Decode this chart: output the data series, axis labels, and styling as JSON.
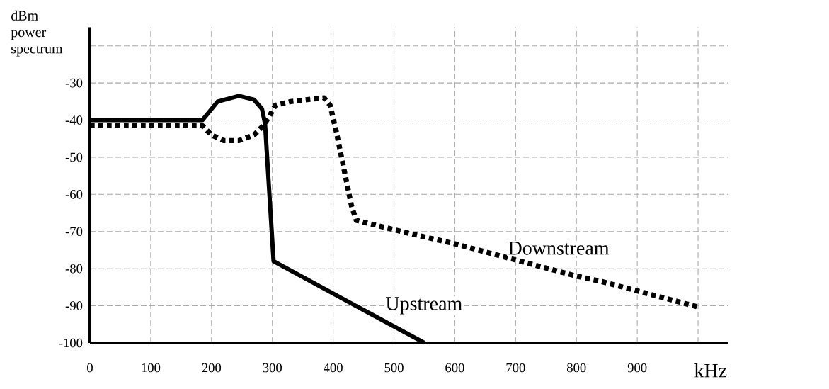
{
  "chart_data": {
    "type": "line",
    "xlabel": "kHz",
    "ylabel": "dBm power spectrum",
    "xlim": [
      0,
      1050
    ],
    "ylim": [
      -100,
      -15
    ],
    "xticks": [
      0,
      100,
      200,
      300,
      400,
      500,
      600,
      700,
      800,
      900,
      {
        "value": 1000,
        "label": null
      }
    ],
    "yticks": [
      -100,
      -90,
      -80,
      -70,
      -60,
      -50,
      -40,
      -30,
      {
        "value": -20,
        "label": null
      }
    ],
    "grid": true,
    "legend": false,
    "marker": "none",
    "series": [
      {
        "name": "Upstream",
        "color": "#000000",
        "line_style": "solid",
        "x": [
          0,
          185,
          195,
          210,
          245,
          270,
          283,
          288,
          302,
          550
        ],
        "values": [
          -40,
          -40,
          -38,
          -35,
          -33.5,
          -34.5,
          -37,
          -41,
          -78,
          -100
        ]
      },
      {
        "name": "Downstream",
        "color": "#000000",
        "line_style": "dotted",
        "x": [
          0,
          185,
          200,
          220,
          245,
          270,
          285,
          295,
          305,
          330,
          385,
          395,
          405,
          420,
          430,
          438,
          525,
          600,
          800,
          840,
          1000
        ],
        "values": [
          -41.5,
          -41.5,
          -44,
          -45.5,
          -45.5,
          -44,
          -41.5,
          -39,
          -36,
          -35,
          -34,
          -36,
          -43,
          -55,
          -63,
          -67,
          -70.5,
          -73.3,
          -82,
          -83.4,
          -90.3
        ]
      }
    ]
  }
}
